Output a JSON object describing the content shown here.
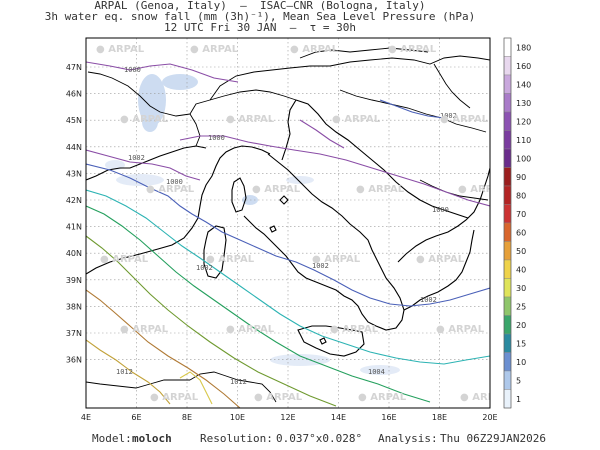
{
  "header": {
    "line1": "ARPAL (Genoa, Italy)  —  ISAC–CNR (Bologna, Italy)",
    "line2": "3h water eq. snow fall (mm (3h)⁻¹), Mean Sea Level Pressure (hPa)",
    "line3": "12 UTC Fri 30 JAN  —  τ = 30h"
  },
  "map": {
    "lat_labels": [
      "47N",
      "46N",
      "45N",
      "44N",
      "43N",
      "42N",
      "41N",
      "40N",
      "39N",
      "38N",
      "37N",
      "36N"
    ],
    "lon_labels": [
      "4E",
      "6E",
      "8E",
      "10E",
      "12E",
      "14E",
      "16E",
      "18E",
      "20E"
    ],
    "watermark": "ARPAL",
    "isobar_labels": [
      "1000",
      "1000",
      "1000",
      "1000",
      "1002",
      "1002",
      "1002",
      "1002",
      "1002",
      "1004",
      "1012",
      "1012"
    ]
  },
  "colorbar": {
    "labels": [
      "180",
      "160",
      "140",
      "130",
      "120",
      "110",
      "100",
      "90",
      "80",
      "70",
      "60",
      "50",
      "40",
      "30",
      "25",
      "20",
      "15",
      "10",
      "5",
      "1"
    ],
    "colors": [
      "#ffffff",
      "#e8d8ee",
      "#c9a8dd",
      "#a97bc9",
      "#8c52b3",
      "#7a3c9f",
      "#6a2c8c",
      "#9b1e1e",
      "#b32424",
      "#cc3333",
      "#d9662d",
      "#e6a03a",
      "#efd34a",
      "#dfe45a",
      "#8fc66b",
      "#3aa66b",
      "#2a8aa0",
      "#6b8fd1",
      "#aec8ea",
      "#e9f2fb"
    ]
  },
  "footer": {
    "model_label": "Model:",
    "model_value": "moloch",
    "resolution_label": "Resolution:",
    "resolution_value": "0.037°x0.028°",
    "analysis_label": "Analysis:",
    "analysis_value": "Thu 06Z29JAN2026"
  }
}
